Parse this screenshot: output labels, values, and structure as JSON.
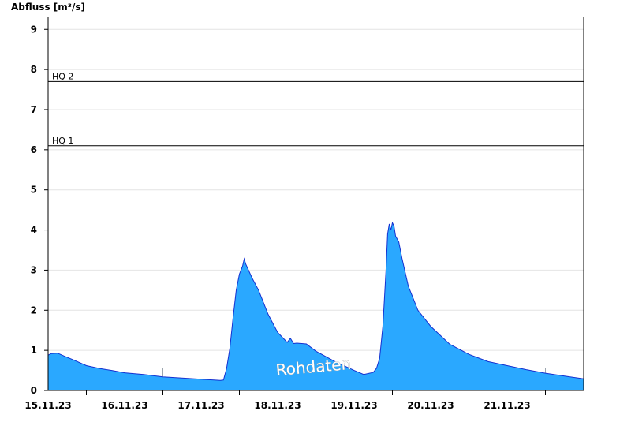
{
  "chart_data": {
    "type": "area",
    "ylabel": "Abfluss [m³/s]",
    "ylim": [
      0,
      9.3
    ],
    "yticks": [
      0,
      1,
      2,
      3,
      4,
      5,
      6,
      7,
      8,
      9
    ],
    "xlim": [
      "2023-11-14T12:00",
      "2023-11-21T12:00"
    ],
    "xtick_labels": [
      "15.11.23",
      "16.11.23",
      "17.11.23",
      "18.11.23",
      "19.11.23",
      "20.11.23",
      "21.11.23"
    ],
    "grid": true,
    "watermark": "Rohdaten",
    "colors": {
      "area_fill": "#2aa8ff",
      "area_line": "#1530d0",
      "grid": "#e4e4e4",
      "axis": "#000000"
    },
    "thresholds": [
      {
        "label": "HQ 1",
        "value": 6.1
      },
      {
        "label": "HQ 2",
        "value": 7.7
      }
    ],
    "series": [
      {
        "points": [
          [
            "2023-11-14T12:00",
            0.88
          ],
          [
            "2023-11-14T13:00",
            0.92
          ],
          [
            "2023-11-14T15:00",
            0.93
          ],
          [
            "2023-11-14T17:00",
            0.86
          ],
          [
            "2023-11-14T20:00",
            0.76
          ],
          [
            "2023-11-15T00:00",
            0.62
          ],
          [
            "2023-11-15T04:00",
            0.55
          ],
          [
            "2023-11-15T08:00",
            0.5
          ],
          [
            "2023-11-15T12:00",
            0.44
          ],
          [
            "2023-11-15T18:00",
            0.4
          ],
          [
            "2023-11-16T00:00",
            0.34
          ],
          [
            "2023-11-16T06:00",
            0.31
          ],
          [
            "2023-11-16T12:00",
            0.28
          ],
          [
            "2023-11-16T18:00",
            0.25
          ],
          [
            "2023-11-16T19:00",
            0.26
          ],
          [
            "2023-11-16T20:00",
            0.55
          ],
          [
            "2023-11-16T21:00",
            1.05
          ],
          [
            "2023-11-16T22:00",
            1.8
          ],
          [
            "2023-11-16T23:00",
            2.5
          ],
          [
            "2023-11-17T00:00",
            2.9
          ],
          [
            "2023-11-17T01:00",
            3.1
          ],
          [
            "2023-11-17T01:30",
            3.28
          ],
          [
            "2023-11-17T02:00",
            3.15
          ],
          [
            "2023-11-17T04:00",
            2.8
          ],
          [
            "2023-11-17T06:00",
            2.5
          ],
          [
            "2023-11-17T09:00",
            1.9
          ],
          [
            "2023-11-17T12:00",
            1.45
          ],
          [
            "2023-11-17T15:00",
            1.2
          ],
          [
            "2023-11-17T16:00",
            1.3
          ],
          [
            "2023-11-17T17:00",
            1.17
          ],
          [
            "2023-11-17T18:00",
            1.18
          ],
          [
            "2023-11-17T21:00",
            1.16
          ],
          [
            "2023-11-18T00:00",
            0.98
          ],
          [
            "2023-11-18T06:00",
            0.72
          ],
          [
            "2023-11-18T12:00",
            0.5
          ],
          [
            "2023-11-18T15:00",
            0.4
          ],
          [
            "2023-11-18T18:00",
            0.45
          ],
          [
            "2023-11-18T19:00",
            0.55
          ],
          [
            "2023-11-18T20:00",
            0.8
          ],
          [
            "2023-11-18T21:00",
            1.6
          ],
          [
            "2023-11-18T22:00",
            3.0
          ],
          [
            "2023-11-18T22:30",
            3.9
          ],
          [
            "2023-11-18T23:00",
            4.15
          ],
          [
            "2023-11-18T23:30",
            4.0
          ],
          [
            "2023-11-19T00:00",
            4.18
          ],
          [
            "2023-11-19T00:30",
            4.1
          ],
          [
            "2023-11-19T01:00",
            3.85
          ],
          [
            "2023-11-19T02:00",
            3.7
          ],
          [
            "2023-11-19T03:00",
            3.3
          ],
          [
            "2023-11-19T05:00",
            2.6
          ],
          [
            "2023-11-19T08:00",
            2.0
          ],
          [
            "2023-11-19T12:00",
            1.6
          ],
          [
            "2023-11-19T18:00",
            1.15
          ],
          [
            "2023-11-20T00:00",
            0.9
          ],
          [
            "2023-11-20T06:00",
            0.72
          ],
          [
            "2023-11-20T12:00",
            0.62
          ],
          [
            "2023-11-20T18:00",
            0.52
          ],
          [
            "2023-11-21T00:00",
            0.43
          ],
          [
            "2023-11-21T06:00",
            0.36
          ],
          [
            "2023-11-21T12:00",
            0.29
          ]
        ]
      }
    ]
  }
}
